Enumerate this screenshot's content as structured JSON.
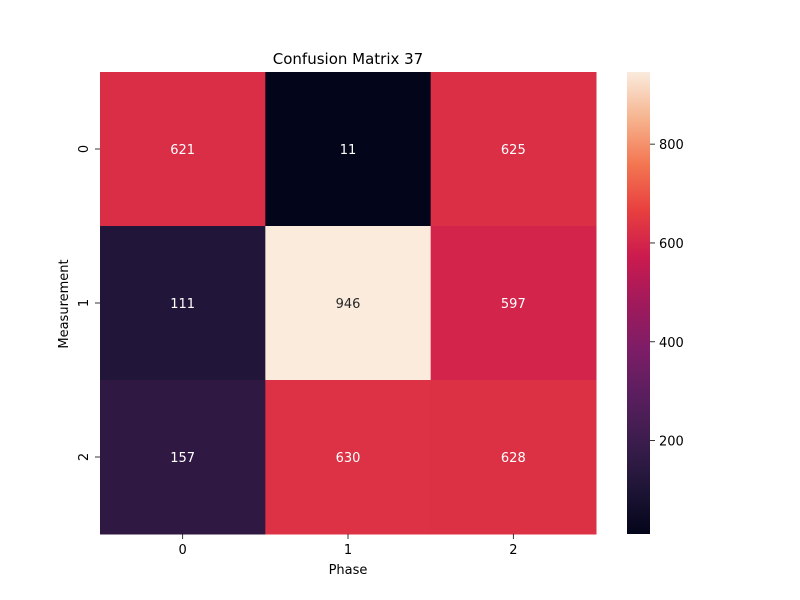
{
  "chart_data": {
    "type": "heatmap",
    "title": "Confusion Matrix 37",
    "xlabel": "Phase",
    "ylabel": "Measurement",
    "x_categories": [
      "0",
      "1",
      "2"
    ],
    "y_categories": [
      "0",
      "1",
      "2"
    ],
    "values": [
      [
        621,
        11,
        625
      ],
      [
        111,
        946,
        597
      ],
      [
        157,
        630,
        628
      ]
    ],
    "colormap": "rocket",
    "colorbar": {
      "min": 11,
      "max": 946,
      "ticks": [
        200,
        400,
        600,
        800
      ]
    },
    "grid": false
  }
}
